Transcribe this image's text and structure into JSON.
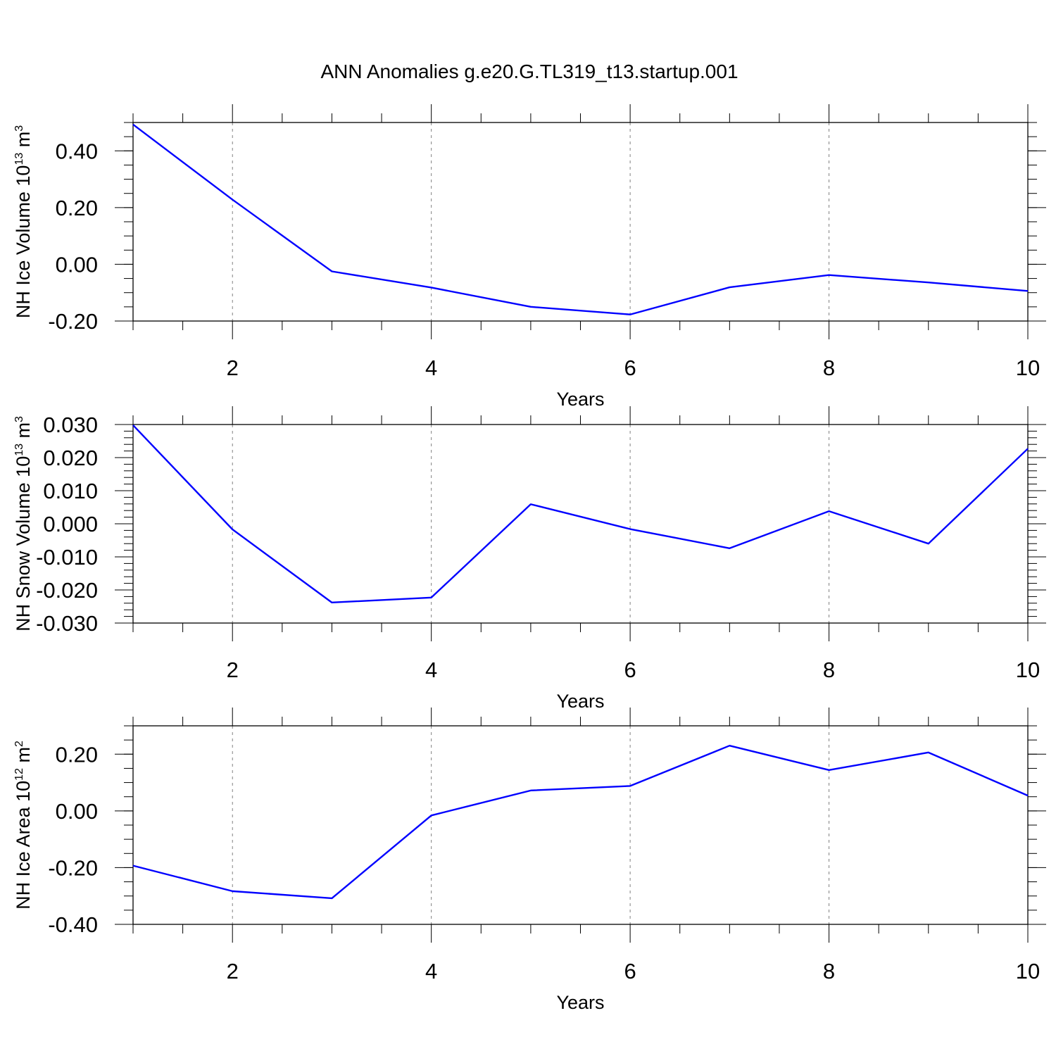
{
  "figure_title": "ANN Anomalies g.e20.G.TL319_t13.startup.001",
  "colors": {
    "line": "#0000ff",
    "axis": "#000000",
    "grid": "#808080"
  },
  "chart_data": [
    {
      "type": "line",
      "xlabel": "Years",
      "ylabel": {
        "text": "NH Ice Volume 10",
        "sup": "13",
        "mid": " m",
        "sup2": "3"
      },
      "xlim": [
        1,
        10
      ],
      "ylim": [
        -0.2,
        0.5
      ],
      "xticks": [
        2,
        4,
        6,
        8,
        10
      ],
      "xtick_labels": [
        "2",
        "4",
        "6",
        "8",
        "10"
      ],
      "yticks": [
        -0.2,
        0.0,
        0.2,
        0.4
      ],
      "ytick_labels": [
        "-0.20",
        "0.00",
        "0.20",
        "0.40"
      ],
      "y_minor_step": 0.05,
      "x": [
        1,
        2,
        3,
        4,
        5,
        6,
        7,
        8,
        9,
        10
      ],
      "y": [
        0.493,
        0.228,
        -0.025,
        -0.082,
        -0.15,
        -0.177,
        -0.081,
        -0.038,
        -0.064,
        -0.094
      ]
    },
    {
      "type": "line",
      "xlabel": "Years",
      "ylabel": {
        "text": "NH Snow Volume 10",
        "sup": "13",
        "mid": " m",
        "sup2": "3"
      },
      "xlim": [
        1,
        10
      ],
      "ylim": [
        -0.03,
        0.03
      ],
      "xticks": [
        2,
        4,
        6,
        8,
        10
      ],
      "xtick_labels": [
        "2",
        "4",
        "6",
        "8",
        "10"
      ],
      "yticks": [
        -0.03,
        -0.02,
        -0.01,
        0.0,
        0.01,
        0.02,
        0.03
      ],
      "ytick_labels": [
        "-0.030",
        "-0.020",
        "-0.010",
        "0.000",
        "0.010",
        "0.020",
        "0.030"
      ],
      "y_minor_step": 0.002,
      "x": [
        1,
        2,
        3,
        4,
        5,
        6,
        7,
        8,
        9,
        10
      ],
      "y": [
        0.0298,
        -0.0017,
        -0.0238,
        -0.0223,
        0.0059,
        -0.0016,
        -0.0074,
        0.0038,
        -0.006,
        0.0227
      ]
    },
    {
      "type": "line",
      "xlabel": "Years",
      "ylabel": {
        "text": "NH Ice Area 10",
        "sup": "12",
        "mid": " m",
        "sup2": "2"
      },
      "xlim": [
        1,
        10
      ],
      "ylim": [
        -0.4,
        0.3
      ],
      "xticks": [
        2,
        4,
        6,
        8,
        10
      ],
      "xtick_labels": [
        "2",
        "4",
        "6",
        "8",
        "10"
      ],
      "yticks": [
        -0.4,
        -0.2,
        0.0,
        0.2
      ],
      "ytick_labels": [
        "-0.40",
        "-0.20",
        "0.00",
        "0.20"
      ],
      "y_minor_step": 0.05,
      "x": [
        1,
        2,
        3,
        4,
        5,
        6,
        7,
        8,
        9,
        10
      ],
      "y": [
        -0.193,
        -0.283,
        -0.308,
        -0.016,
        0.072,
        0.088,
        0.23,
        0.144,
        0.206,
        0.054
      ]
    }
  ]
}
